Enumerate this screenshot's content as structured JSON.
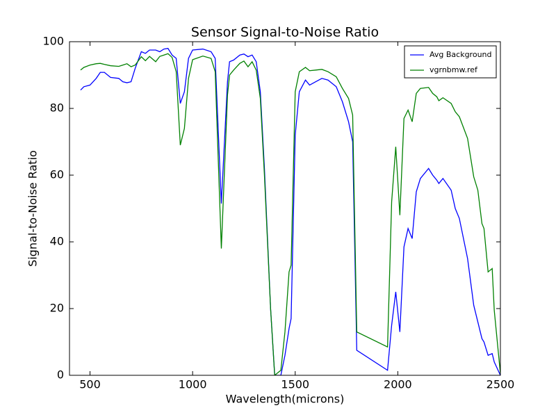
{
  "chart_data": {
    "type": "line",
    "title": "Sensor Signal-to-Noise Ratio",
    "x_label": "Wavelength(microns)",
    "y_label": "Signal-to-Noise Ratio",
    "xlim": [
      400,
      2500
    ],
    "xticks": [
      500,
      1000,
      1500,
      2000,
      2500
    ],
    "ylim": [
      0,
      100
    ],
    "yticks": [
      0,
      20,
      40,
      60,
      80,
      100
    ],
    "grid": false,
    "legend": "upper right",
    "x": [
      454,
      470,
      500,
      530,
      550,
      570,
      600,
      640,
      660,
      680,
      700,
      720,
      750,
      770,
      790,
      820,
      840,
      860,
      880,
      900,
      920,
      940,
      960,
      980,
      1000,
      1050,
      1090,
      1110,
      1140,
      1170,
      1180,
      1200,
      1230,
      1250,
      1270,
      1290,
      1310,
      1330,
      1350,
      1380,
      1400,
      1430,
      1450,
      1470,
      1480,
      1500,
      1520,
      1550,
      1570,
      1600,
      1630,
      1660,
      1700,
      1730,
      1760,
      1780,
      1800,
      1950,
      1970,
      1990,
      2010,
      2030,
      2050,
      2070,
      2090,
      2110,
      2150,
      2170,
      2190,
      2200,
      2220,
      2260,
      2280,
      2300,
      2340,
      2370,
      2390,
      2410,
      2420,
      2440,
      2460,
      2470,
      2500
    ],
    "series": [
      {
        "name": "Avg Background",
        "color": "#0000ff",
        "values": [
          85.5,
          86.5,
          87,
          89,
          90.8,
          90.8,
          89.3,
          89,
          88,
          87.7,
          88,
          92,
          97,
          96.5,
          97.5,
          97.5,
          97,
          97.8,
          98,
          96,
          95,
          81.5,
          85,
          95,
          97.5,
          97.8,
          97,
          95,
          51.5,
          88,
          94,
          94.5,
          96,
          96.3,
          95.5,
          96,
          94,
          85,
          62,
          20,
          0,
          0,
          6,
          14,
          17,
          72,
          85,
          88.5,
          87,
          88,
          89,
          88.5,
          86.5,
          82,
          76,
          70,
          7.5,
          1.5,
          15,
          25,
          13,
          38.5,
          44,
          41,
          55,
          59,
          62,
          60,
          58.5,
          57.5,
          59,
          55.5,
          50,
          47,
          35,
          21,
          16,
          11,
          10,
          6,
          6.5,
          4,
          0
        ]
      },
      {
        "name": "vgrnbmw.ref",
        "color": "#008000",
        "values": [
          91.5,
          92.3,
          93,
          93.4,
          93.5,
          93.2,
          92.8,
          92.6,
          93,
          93.4,
          92.5,
          93,
          95.5,
          94.3,
          95.6,
          94,
          95.6,
          96,
          96.4,
          95.3,
          91,
          69,
          74,
          89,
          94.6,
          95.7,
          95,
          91,
          38,
          84,
          90,
          91.5,
          93.5,
          94.2,
          92.5,
          94,
          91.5,
          83,
          60,
          20,
          0,
          1.5,
          13,
          31,
          33,
          85,
          91,
          92.3,
          91.3,
          91.5,
          91.7,
          91,
          89.5,
          86,
          83,
          78,
          13,
          8.5,
          52,
          68.5,
          48,
          77,
          79.5,
          76,
          84.5,
          86,
          86.3,
          84.5,
          83.5,
          82.3,
          83.2,
          81.5,
          79,
          77.5,
          71,
          59.5,
          55.5,
          45.5,
          44,
          31,
          32,
          19.5,
          0.5
        ]
      }
    ]
  }
}
